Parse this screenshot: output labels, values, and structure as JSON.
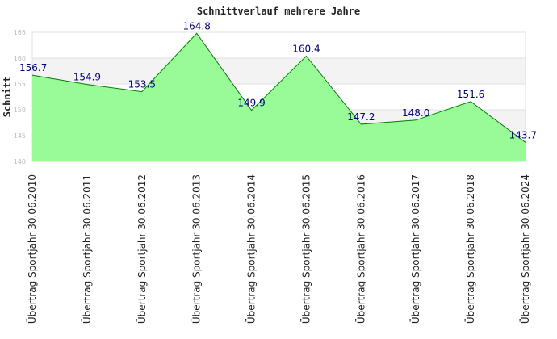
{
  "chart_data": {
    "type": "area",
    "title": "Schnittverlauf mehrere Jahre",
    "xlabel": "",
    "ylabel": "Schnitt",
    "categories": [
      "Übertrag Sportjahr 30.06.2010",
      "Übertrag Sportjahr 30.06.2011",
      "Übertrag Sportjahr 30.06.2012",
      "Übertrag Sportjahr 30.06.2013",
      "Übertrag Sportjahr 30.06.2014",
      "Übertrag Sportjahr 30.06.2015",
      "Übertrag Sportjahr 30.06.2016",
      "Übertrag Sportjahr 30.06.2017",
      "Übertrag Sportjahr 30.06.2018",
      "Übertrag Sportjahr 30.06.2024"
    ],
    "values": [
      156.7,
      154.9,
      153.5,
      164.8,
      149.9,
      160.4,
      147.2,
      148.0,
      151.6,
      143.7
    ],
    "data_labels": [
      "156.7",
      "154.9",
      "153.5",
      "164.8",
      "149.9",
      "160.4",
      "147.2",
      "148.0",
      "151.6",
      "143.7"
    ],
    "yticks": [
      "140",
      "145",
      "150",
      "155",
      "160",
      "165"
    ],
    "ylim": [
      140,
      165
    ],
    "grid": true,
    "legend": "none",
    "colors": {
      "fill": "#98fb98",
      "line": "#008000",
      "band": "#f3f3f3",
      "label": "#000080",
      "gridline": "#e2e2e2"
    }
  }
}
